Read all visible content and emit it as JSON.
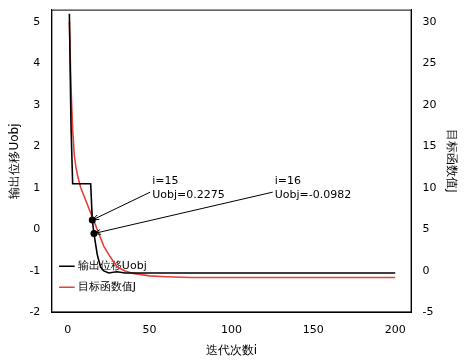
{
  "chart_data": {
    "type": "line",
    "x_label": "迭代次数i",
    "y_label": "输出位移Uobj",
    "y2_label": "目标函数值J",
    "x": [
      1,
      2,
      3,
      4,
      5,
      6,
      8,
      10,
      12,
      14,
      15,
      16,
      18,
      20,
      22,
      25,
      30,
      35,
      40,
      50,
      60,
      75,
      100,
      125,
      150,
      175,
      200
    ],
    "series": [
      {
        "name": "输出位移Uobj",
        "color": "#000000",
        "axis": "y",
        "values": [
          5.2,
          2.5,
          1.1,
          1.1,
          1.1,
          1.1,
          1.1,
          1.1,
          1.1,
          1.1,
          0.2275,
          -0.0982,
          -0.6,
          -0.9,
          -1.0,
          -1.05,
          -1.02,
          -1.05,
          -1.05,
          -1.05,
          -1.05,
          -1.05,
          -1.05,
          -1.05,
          -1.05,
          -1.05,
          -1.05
        ]
      },
      {
        "name": "目标函数值J",
        "color": "#e8403a",
        "axis": "y2",
        "values": [
          30,
          22,
          17,
          14,
          12.5,
          11.5,
          10,
          9,
          8,
          7,
          6.5,
          6,
          5,
          4,
          3,
          2,
          0.5,
          0,
          -0.3,
          -0.6,
          -0.7,
          -0.8,
          -0.8,
          -0.8,
          -0.8,
          -0.8,
          -0.8
        ]
      }
    ],
    "xlim": [
      -10,
      210
    ],
    "xticks": [
      0,
      50,
      100,
      150,
      200
    ],
    "ylim": [
      -2,
      5.3
    ],
    "yticks": [
      -2,
      -1,
      0,
      1,
      2,
      3,
      4,
      5
    ],
    "y2lim": [
      -5,
      31.5
    ],
    "y2ticks": [
      -5,
      0,
      5,
      10,
      15,
      20,
      25,
      30
    ],
    "grid": false,
    "legend": "upper right",
    "annotations": [
      {
        "x": 15,
        "y": 0.2275,
        "lines": [
          "i=15",
          "Uobj=0.2275"
        ]
      },
      {
        "x": 16,
        "y": -0.0982,
        "lines": [
          "i=16",
          "Uobj=-0.0982"
        ]
      }
    ]
  }
}
